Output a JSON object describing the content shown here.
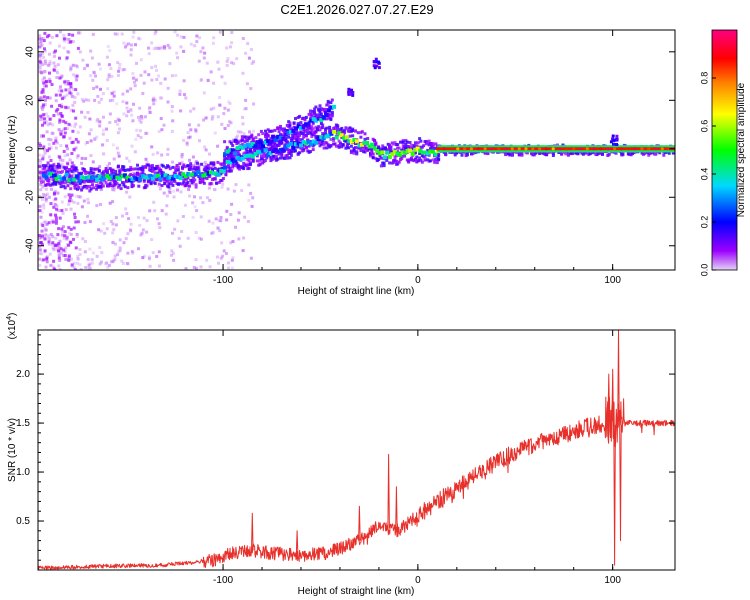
{
  "figure_title": "C2E1.2026.027.07.27.E29",
  "chart_data": [
    {
      "type": "heatmap",
      "panel": "spectrogram",
      "xlabel": "Height of straight line (km)",
      "ylabel": "Frequency (Hz)",
      "xlim": [
        -195,
        132
      ],
      "ylim": [
        -50,
        49
      ],
      "xticks": [
        -100,
        0,
        100
      ],
      "yticks": [
        -40,
        -20,
        0,
        20,
        40
      ],
      "colorbar": {
        "label": "Normalized spectral amplitude",
        "range": [
          0,
          1
        ],
        "ticks": [
          "0.0",
          "0.2",
          "0.4",
          "0.6",
          "0.8"
        ],
        "tick_values": [
          0.0,
          0.2,
          0.4,
          0.6,
          0.8
        ],
        "colors": [
          "#e6d4f5",
          "#9b00ff",
          "#0000ff",
          "#00d8ff",
          "#00ff00",
          "#ffff00",
          "#ff8000",
          "#ff0000",
          "#ff0080"
        ]
      },
      "ridge": {
        "description": "peak frequency track vs height",
        "segments": [
          {
            "x": [
              -193,
              -170,
              -150,
              -130,
              -110,
              -100
            ],
            "y": [
              -10,
              -12,
              -11,
              -10.5,
              -10,
              -9
            ],
            "amplitude": 0.35
          },
          {
            "x": [
              -100,
              -90,
              -80,
              -70,
              -60,
              -50,
              -45
            ],
            "y": [
              -6,
              -3,
              -1,
              1,
              3,
              5,
              6
            ],
            "amplitude": 0.3
          },
          {
            "x": [
              -100,
              -85,
              -70,
              -60,
              -50,
              -44
            ],
            "y": [
              -1,
              2,
              6,
              10,
              14,
              18
            ],
            "amplitude": 0.28
          },
          {
            "x": [
              -44,
              -38,
              -30,
              -25,
              -20,
              -10,
              0,
              10
            ],
            "y": [
              7,
              5,
              3,
              2,
              -2,
              -1,
              0,
              -1
            ],
            "amplitude": 0.5
          },
          {
            "x": [
              10,
              30,
              50,
              70,
              90,
              100,
              132
            ],
            "y": [
              0,
              0,
              0,
              0,
              0,
              0,
              0
            ],
            "amplitude": 0.85
          }
        ]
      }
    },
    {
      "type": "line",
      "panel": "snr",
      "xlabel": "Height of straight line (km)",
      "ylabel": "SNR (10 * v/v)",
      "scale_label": "(x10",
      "scale_exponent": "4",
      "xlim": [
        -195,
        132
      ],
      "ylim": [
        0,
        2.45
      ],
      "xticks": [
        -100,
        0,
        100
      ],
      "yticks": [
        0.5,
        1.0,
        1.5,
        2.0
      ],
      "ytick_labels": [
        "0.5",
        "1.0",
        "1.5",
        "2.0"
      ],
      "color": "#e8302b",
      "envelope": {
        "x": [
          -195,
          -160,
          -130,
          -105,
          -95,
          -85,
          -75,
          -60,
          -45,
          -30,
          -20,
          -10,
          0,
          10,
          25,
          40,
          55,
          70,
          85,
          95,
          99,
          102,
          105,
          115,
          132
        ],
        "y": [
          0.02,
          0.04,
          0.05,
          0.1,
          0.17,
          0.2,
          0.17,
          0.15,
          0.18,
          0.3,
          0.45,
          0.4,
          0.55,
          0.7,
          0.9,
          1.1,
          1.25,
          1.35,
          1.45,
          1.5,
          1.55,
          1.45,
          1.5,
          1.5,
          1.5
        ]
      },
      "spikes": [
        {
          "x": -85,
          "y": 0.58
        },
        {
          "x": -62,
          "y": 0.4
        },
        {
          "x": -30,
          "y": 0.65
        },
        {
          "x": -15,
          "y": 1.18
        },
        {
          "x": -11,
          "y": 0.85
        },
        {
          "x": 98,
          "y": 2.0
        },
        {
          "x": 100,
          "y": 2.05
        },
        {
          "x": 101,
          "y": 0.05
        },
        {
          "x": 103,
          "y": 2.45
        },
        {
          "x": 104,
          "y": 0.3
        }
      ]
    }
  ]
}
